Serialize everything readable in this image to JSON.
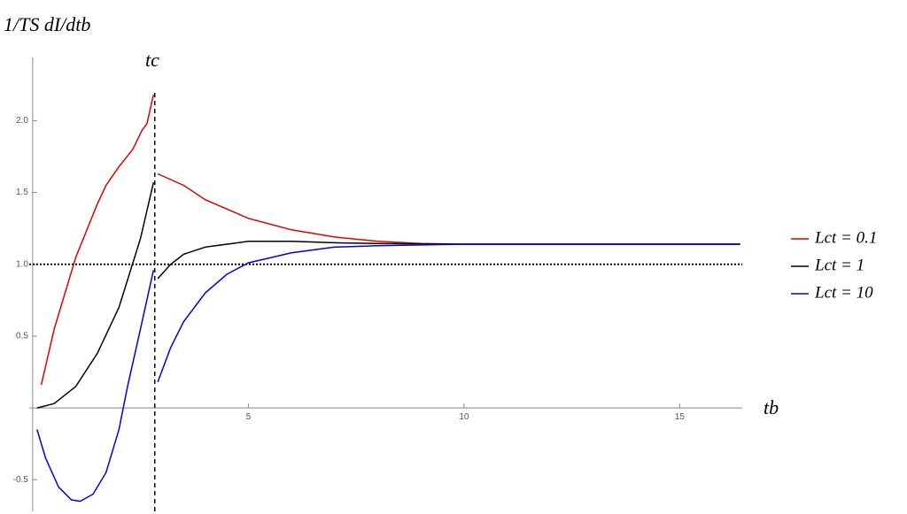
{
  "chart_data": {
    "type": "line",
    "y_label": "1/TS dI/dtb",
    "x_label": "tb",
    "xlim": [
      -0.08,
      16.45
    ],
    "ylim": [
      -0.72,
      2.44
    ],
    "xticks": [
      5,
      10,
      15
    ],
    "yticks": [
      -0.5,
      0.5,
      {
        "value": 1,
        "label": "1.0"
      },
      1.5,
      {
        "value": 2,
        "label": "2.0"
      }
    ],
    "hline": 1,
    "vline": {
      "x": 2.83,
      "label": "tc"
    },
    "series": [
      {
        "name": "Lct = 0.1",
        "color": "#e00000",
        "x": [
          0.2,
          0.5,
          1.0,
          1.5,
          1.7,
          2.0,
          2.32,
          2.53,
          2.65,
          2.8,
          2.83,
          2.9,
          3.5,
          4,
          5,
          6,
          7,
          8,
          9,
          10,
          12,
          16.4
        ],
        "values": [
          0.16,
          0.55,
          1.05,
          1.42,
          1.55,
          1.68,
          1.8,
          1.93,
          1.98,
          2.18,
          null,
          1.63,
          1.55,
          1.45,
          1.32,
          1.24,
          1.19,
          1.16,
          1.145,
          1.14,
          1.14,
          1.14
        ]
      },
      {
        "name": "Lct = 1",
        "color": "#000000",
        "x": [
          0.1,
          0.5,
          1.0,
          1.5,
          2.0,
          2.5,
          2.8,
          2.83,
          2.9,
          3.2,
          3.5,
          4,
          5,
          6,
          7,
          8,
          10,
          16.4
        ],
        "values": [
          0,
          0.03,
          0.15,
          0.38,
          0.7,
          1.18,
          1.57,
          null,
          0.9,
          1.0,
          1.07,
          1.12,
          1.16,
          1.16,
          1.15,
          1.145,
          1.14,
          1.14
        ]
      },
      {
        "name": "Lct = 10",
        "color": "#0000e0",
        "x": [
          0.1,
          0.3,
          0.6,
          0.9,
          1.1,
          1.4,
          1.7,
          2.0,
          2.2,
          2.5,
          2.8,
          2.83,
          2.9,
          3.2,
          3.5,
          4,
          4.5,
          5,
          6,
          7,
          8,
          10,
          16.4
        ],
        "values": [
          -0.15,
          -0.35,
          -0.55,
          -0.64,
          -0.65,
          -0.6,
          -0.45,
          -0.15,
          0.15,
          0.55,
          0.96,
          null,
          0.18,
          0.42,
          0.6,
          0.8,
          0.93,
          1.01,
          1.08,
          1.12,
          1.13,
          1.14,
          1.14
        ]
      }
    ]
  }
}
